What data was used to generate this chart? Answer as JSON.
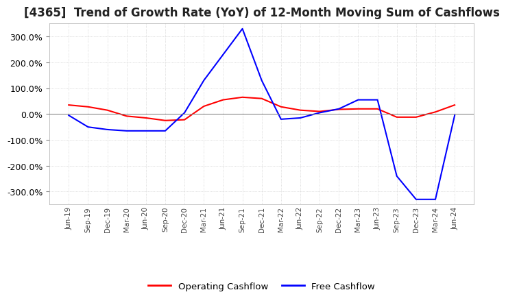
{
  "title": "[4365]  Trend of Growth Rate (YoY) of 12-Month Moving Sum of Cashflows",
  "title_fontsize": 12,
  "ylim": [
    -350,
    350
  ],
  "yticks": [
    -300,
    -200,
    -100,
    0,
    100,
    200,
    300
  ],
  "background_color": "#ffffff",
  "grid_color": "#aaaaaa",
  "legend_labels": [
    "Operating Cashflow",
    "Free Cashflow"
  ],
  "legend_colors": [
    "#ff0000",
    "#0000ff"
  ],
  "x_labels": [
    "Jun-19",
    "Sep-19",
    "Dec-19",
    "Mar-20",
    "Jun-20",
    "Sep-20",
    "Dec-20",
    "Mar-21",
    "Jun-21",
    "Sep-21",
    "Dec-21",
    "Mar-22",
    "Jun-22",
    "Sep-22",
    "Dec-22",
    "Mar-23",
    "Jun-23",
    "Sep-23",
    "Dec-23",
    "Mar-24",
    "Jun-24"
  ],
  "operating_cashflow": [
    35,
    28,
    15,
    -8,
    -15,
    -25,
    -22,
    30,
    55,
    65,
    60,
    28,
    15,
    10,
    18,
    20,
    20,
    -12,
    -12,
    8,
    35
  ],
  "free_cashflow": [
    -5,
    -50,
    -60,
    -65,
    -65,
    -65,
    5,
    130,
    230,
    330,
    130,
    -20,
    -15,
    5,
    20,
    55,
    55,
    -240,
    -330,
    -330,
    -5
  ]
}
